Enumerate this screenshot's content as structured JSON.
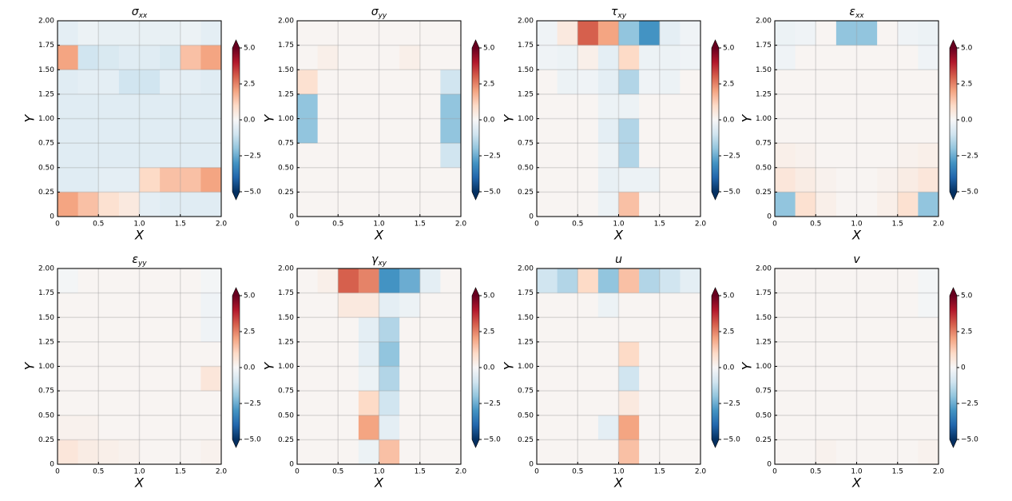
{
  "chart_data": [
    {
      "type": "heatmap",
      "title": "σxx",
      "xlabel": "X",
      "ylabel": "Y",
      "colormap": "RdBu_r",
      "grid": true,
      "xlim": [
        0,
        2
      ],
      "ylim": [
        0,
        2
      ],
      "clim": [
        -5,
        5
      ],
      "xticks": [
        0,
        0.5,
        {
          "value": 1,
          "label": "1.0"
        },
        1.5,
        {
          "value": 2,
          "label": "2.0"
        }
      ],
      "yticks": [
        0,
        0.25,
        {
          "value": 0.5,
          "label": "0.50"
        },
        0.75,
        {
          "value": 1,
          "label": "1.00"
        },
        1.25,
        {
          "value": 1.5,
          "label": "1.50"
        },
        1.75,
        {
          "value": 2,
          "label": "2.00"
        }
      ],
      "cticks": [
        {
          "value": -5,
          "label": "−5.0"
        },
        {
          "value": -2.5,
          "label": "−2.5"
        },
        {
          "value": 0,
          "label": "0.0"
        },
        2.5,
        {
          "value": 5,
          "label": "5.0"
        }
      ],
      "z": [
        [
          -0.5,
          -0.3,
          -0.4,
          -0.4,
          -0.4,
          -0.4,
          -0.3,
          -0.5
        ],
        [
          2,
          -1,
          -0.8,
          -0.6,
          -0.6,
          -0.8,
          1.5,
          2
        ],
        [
          -0.6,
          -0.5,
          -0.5,
          -1,
          -1,
          -0.5,
          -0.5,
          -0.6
        ],
        [
          -0.6,
          -0.6,
          -0.6,
          -0.6,
          -0.6,
          -0.6,
          -0.6,
          -0.6
        ],
        [
          -0.6,
          -0.6,
          -0.6,
          -0.6,
          -0.6,
          -0.6,
          -0.6,
          -0.6
        ],
        [
          -0.6,
          -0.6,
          -0.6,
          -0.6,
          -0.6,
          -0.6,
          -0.6,
          -0.6
        ],
        [
          -0.6,
          -0.6,
          -0.5,
          -0.5,
          1,
          1.5,
          1.5,
          2
        ],
        [
          2,
          1.5,
          0.8,
          0.5,
          -0.5,
          -0.6,
          -0.6,
          -0.6
        ]
      ]
    },
    {
      "type": "heatmap",
      "title": "σyy",
      "xlabel": "X",
      "ylabel": "Y",
      "colormap": "RdBu_r",
      "grid": true,
      "xlim": [
        0,
        2
      ],
      "ylim": [
        0,
        2
      ],
      "clim": [
        -5,
        5
      ],
      "xticks": [
        0,
        0.5,
        {
          "value": 1,
          "label": "1.0"
        },
        1.5,
        {
          "value": 2,
          "label": "2.0"
        }
      ],
      "yticks": [
        0,
        0.25,
        {
          "value": 0.5,
          "label": "0.50"
        },
        0.75,
        {
          "value": 1,
          "label": "1.00"
        },
        1.25,
        {
          "value": 1.5,
          "label": "1.50"
        },
        1.75,
        {
          "value": 2,
          "label": "2.00"
        }
      ],
      "cticks": [
        {
          "value": -5,
          "label": "−5.0"
        },
        {
          "value": -2.5,
          "label": "−2.5"
        },
        {
          "value": 0,
          "label": "0.0"
        },
        2.5,
        {
          "value": 5,
          "label": "5.0"
        }
      ],
      "z": [
        [
          0.1,
          0.1,
          0.1,
          0.1,
          0.1,
          0.1,
          0.1,
          0.1
        ],
        [
          0.1,
          0.3,
          0.1,
          0.1,
          0.1,
          0.3,
          0.1,
          0.1
        ],
        [
          0.8,
          0.1,
          0.1,
          0.1,
          0.1,
          0.1,
          0.1,
          -1
        ],
        [
          -2,
          0.1,
          0.1,
          0.1,
          0.1,
          0.1,
          0.1,
          -2
        ],
        [
          -2,
          0.1,
          0.1,
          0.1,
          0.1,
          0.1,
          0.1,
          -2
        ],
        [
          0.1,
          0.1,
          0.1,
          0.1,
          0.1,
          0.1,
          0.1,
          -1
        ],
        [
          0.1,
          0.1,
          0.1,
          0.1,
          0.1,
          0.1,
          0.1,
          0.1
        ],
        [
          0.1,
          0.1,
          0.1,
          0.1,
          0.1,
          0.1,
          0.1,
          0.1
        ]
      ]
    },
    {
      "type": "heatmap",
      "title": "τxy",
      "xlabel": "X",
      "ylabel": "Y",
      "colormap": "RdBu_r",
      "grid": true,
      "xlim": [
        0,
        2
      ],
      "ylim": [
        0,
        2
      ],
      "clim": [
        -5,
        5
      ],
      "xticks": [
        0,
        0.5,
        {
          "value": 1,
          "label": "1.0"
        },
        1.5,
        {
          "value": 2,
          "label": "2.0"
        }
      ],
      "yticks": [
        0,
        0.25,
        {
          "value": 0.5,
          "label": "0.50"
        },
        0.75,
        {
          "value": 1,
          "label": "1.00"
        },
        1.25,
        {
          "value": 1.5,
          "label": "1.50"
        },
        1.75,
        {
          "value": 2,
          "label": "2.00"
        }
      ],
      "cticks": [
        {
          "value": -5,
          "label": "−5.0"
        },
        {
          "value": -2.5,
          "label": "−2.5"
        },
        {
          "value": 0,
          "label": "0.0"
        },
        2.5,
        {
          "value": 5,
          "label": "5.0"
        }
      ],
      "z": [
        [
          -0.2,
          0.5,
          3,
          2,
          -2,
          -3,
          -0.5,
          -0.2
        ],
        [
          -0.2,
          -0.3,
          0.3,
          -0.5,
          1,
          -0.3,
          -0.3,
          -0.2
        ],
        [
          0.1,
          -0.3,
          -0.2,
          -0.5,
          -1.5,
          -0.2,
          -0.3,
          0.1
        ],
        [
          0.1,
          0.1,
          0.1,
          -0.3,
          -0.3,
          0.1,
          0.1,
          0.1
        ],
        [
          0.1,
          0.1,
          0.1,
          -0.5,
          -1.5,
          0.1,
          0.1,
          0.1
        ],
        [
          0.1,
          0.1,
          0.1,
          -0.3,
          -1.5,
          0.1,
          0.1,
          0.1
        ],
        [
          0.1,
          0.1,
          0.1,
          -0.4,
          -0.3,
          -0.3,
          0.1,
          0.1
        ],
        [
          0.1,
          0.1,
          0.1,
          -0.3,
          1.5,
          0.1,
          0.1,
          0.1
        ]
      ]
    },
    {
      "type": "heatmap",
      "title": "εxx",
      "xlabel": "X",
      "ylabel": "Y",
      "colormap": "RdBu_r",
      "grid": true,
      "xlim": [
        0,
        2
      ],
      "ylim": [
        0,
        2
      ],
      "clim": [
        -5,
        5
      ],
      "xticks": [
        0,
        0.5,
        {
          "value": 1,
          "label": "1.0"
        },
        1.5,
        {
          "value": 2,
          "label": "2.0"
        }
      ],
      "yticks": [
        0,
        0.25,
        {
          "value": 0.5,
          "label": "0.50"
        },
        0.75,
        {
          "value": 1,
          "label": "1.00"
        },
        1.25,
        {
          "value": 1.5,
          "label": "1.50"
        },
        1.75,
        {
          "value": 2,
          "label": "2.00"
        }
      ],
      "cticks": [
        {
          "value": -5,
          "label": "−5.0"
        },
        {
          "value": -2.5,
          "label": "−2.5"
        },
        {
          "value": 0,
          "label": "0.0"
        },
        2.5,
        {
          "value": 5,
          "label": "5.0"
        }
      ],
      "z": [
        [
          -0.3,
          -0.2,
          0.1,
          -2,
          -2,
          0.1,
          -0.2,
          -0.3
        ],
        [
          -0.2,
          0.1,
          0.1,
          0.1,
          0.1,
          0.1,
          0.1,
          -0.2
        ],
        [
          0.1,
          0.1,
          0.1,
          0.1,
          0.1,
          0.1,
          0.1,
          0.1
        ],
        [
          0.1,
          0.1,
          0.1,
          0.1,
          0.1,
          0.1,
          0.1,
          0.1
        ],
        [
          0.1,
          0.1,
          0.1,
          0.1,
          0.1,
          0.1,
          0.1,
          0.1
        ],
        [
          0.3,
          0.2,
          0.1,
          0.1,
          0.1,
          0.1,
          0.2,
          0.3
        ],
        [
          0.6,
          0.4,
          0.2,
          0.1,
          0.1,
          0.2,
          0.4,
          0.6
        ],
        [
          -2,
          0.8,
          0.3,
          0.1,
          0.1,
          0.3,
          0.8,
          -2
        ]
      ]
    },
    {
      "type": "heatmap",
      "title": "εyy",
      "xlabel": "X",
      "ylabel": "Y",
      "colormap": "RdBu_r",
      "grid": true,
      "xlim": [
        0,
        2
      ],
      "ylim": [
        0,
        2
      ],
      "clim": [
        -5,
        5
      ],
      "xticks": [
        0,
        0.5,
        {
          "value": 1,
          "label": "1.0"
        },
        1.5,
        {
          "value": 2,
          "label": "2.0"
        }
      ],
      "yticks": [
        0,
        0.25,
        {
          "value": 0.5,
          "label": "0.50"
        },
        0.75,
        {
          "value": 1,
          "label": "1.00"
        },
        1.25,
        {
          "value": 1.5,
          "label": "1.50"
        },
        1.75,
        {
          "value": 2,
          "label": "2.00"
        }
      ],
      "cticks": [
        {
          "value": -5,
          "label": "−5.0"
        },
        {
          "value": -2.5,
          "label": "−2.5"
        },
        {
          "value": 0,
          "label": "0.0"
        },
        2.5,
        {
          "value": 5,
          "label": "5.0"
        }
      ],
      "z": [
        [
          -0.1,
          0.1,
          0.1,
          0.1,
          0.1,
          0.1,
          0.1,
          -0.1
        ],
        [
          0.1,
          0.1,
          0.1,
          0.1,
          0.1,
          0.1,
          0.1,
          -0.2
        ],
        [
          0.1,
          0.1,
          0.1,
          0.1,
          0.1,
          0.1,
          0.1,
          -0.2
        ],
        [
          0.1,
          0.1,
          0.1,
          0.1,
          0.1,
          0.1,
          0.1,
          0.1
        ],
        [
          0.1,
          0.1,
          0.1,
          0.1,
          0.1,
          0.1,
          0.1,
          0.6
        ],
        [
          0.1,
          0.1,
          0.1,
          0.1,
          0.1,
          0.1,
          0.1,
          0.1
        ],
        [
          0.2,
          0.2,
          0.1,
          0.1,
          0.1,
          0.1,
          0.1,
          0.1
        ],
        [
          0.6,
          0.4,
          0.3,
          0.2,
          0.1,
          0.1,
          0.1,
          0.2
        ]
      ]
    },
    {
      "type": "heatmap",
      "title": "γxy",
      "xlabel": "X",
      "ylabel": "Y",
      "colormap": "RdBu_r",
      "grid": true,
      "xlim": [
        0,
        2
      ],
      "ylim": [
        0,
        2
      ],
      "clim": [
        -5,
        5
      ],
      "xticks": [
        0,
        0.5,
        {
          "value": 1,
          "label": "1.0"
        },
        1.5,
        {
          "value": 2,
          "label": "2.0"
        }
      ],
      "yticks": [
        0,
        0.25,
        {
          "value": 0.5,
          "label": "0.50"
        },
        0.75,
        {
          "value": 1,
          "label": "1.00"
        },
        1.25,
        {
          "value": 1.5,
          "label": "1.50"
        },
        1.75,
        {
          "value": 2,
          "label": "2.00"
        }
      ],
      "cticks": [
        {
          "value": -5,
          "label": "−5.0"
        },
        {
          "value": -2.5,
          "label": "−2.5"
        },
        {
          "value": 0,
          "label": "0.0"
        },
        2.5,
        {
          "value": 5,
          "label": "5.0"
        }
      ],
      "z": [
        [
          0.1,
          0.3,
          3,
          2.5,
          -3,
          -2.5,
          -0.5,
          0.1
        ],
        [
          0.1,
          0.1,
          0.5,
          0.5,
          -0.5,
          -0.3,
          0.1,
          0.1
        ],
        [
          0.1,
          0.1,
          0.1,
          -0.5,
          -1.5,
          0.1,
          0.1,
          0.1
        ],
        [
          0.1,
          0.1,
          0.1,
          -0.5,
          -2,
          0.1,
          0.1,
          0.1
        ],
        [
          0.1,
          0.1,
          0.1,
          -0.3,
          -1.5,
          0.1,
          0.1,
          0.1
        ],
        [
          0.1,
          0.1,
          0.1,
          1,
          -1,
          0.1,
          0.1,
          0.1
        ],
        [
          0.1,
          0.1,
          0.1,
          2,
          -0.5,
          0.1,
          0.1,
          0.1
        ],
        [
          0.1,
          0.1,
          0.1,
          -0.3,
          1.5,
          0.1,
          0.1,
          0.1
        ]
      ]
    },
    {
      "type": "heatmap",
      "title": "u",
      "xlabel": "X",
      "ylabel": "Y",
      "colormap": "RdBu_r",
      "grid": true,
      "xlim": [
        0,
        2
      ],
      "ylim": [
        0,
        2
      ],
      "clim": [
        -5,
        5
      ],
      "xticks": [
        0,
        0.5,
        {
          "value": 1,
          "label": "1.0"
        },
        1.5,
        {
          "value": 2,
          "label": "2.0"
        }
      ],
      "yticks": [
        0,
        0.25,
        {
          "value": 0.5,
          "label": "0.50"
        },
        0.75,
        {
          "value": 1,
          "label": "1.00"
        },
        1.25,
        {
          "value": 1.5,
          "label": "1.50"
        },
        1.75,
        {
          "value": 2,
          "label": "2.00"
        }
      ],
      "cticks": [
        {
          "value": -5,
          "label": "−5.0"
        },
        {
          "value": -2.5,
          "label": "−2.5"
        },
        {
          "value": 0,
          "label": "0.0"
        },
        2.5,
        {
          "value": 5,
          "label": "5.0"
        }
      ],
      "z": [
        [
          -1,
          -1.5,
          1,
          -2,
          1.5,
          -1.5,
          -1,
          -0.5
        ],
        [
          0.1,
          0.1,
          0.1,
          -0.3,
          0.1,
          0.1,
          0.1,
          0.1
        ],
        [
          0.1,
          0.1,
          0.1,
          0.1,
          0.1,
          0.1,
          0.1,
          0.1
        ],
        [
          0.1,
          0.1,
          0.1,
          0.1,
          1,
          0.1,
          0.1,
          0.1
        ],
        [
          0.1,
          0.1,
          0.1,
          0.1,
          -1,
          0.1,
          0.1,
          0.1
        ],
        [
          0.1,
          0.1,
          0.1,
          0.1,
          0.5,
          0.1,
          0.1,
          0.1
        ],
        [
          0.1,
          0.1,
          0.1,
          -0.5,
          2,
          0.1,
          0.1,
          0.1
        ],
        [
          0.1,
          0.1,
          0.1,
          0.1,
          1.5,
          0.1,
          0.1,
          0.1
        ]
      ]
    },
    {
      "type": "heatmap",
      "title": "v",
      "xlabel": "X",
      "ylabel": "Y",
      "colormap": "RdBu_r",
      "grid": true,
      "xlim": [
        0,
        2
      ],
      "ylim": [
        0,
        2
      ],
      "clim": [
        -5,
        5
      ],
      "xticks": [
        0,
        0.5,
        {
          "value": 1,
          "label": "1.0"
        },
        1.5,
        {
          "value": 2,
          "label": "2.0"
        }
      ],
      "yticks": [
        0,
        0.25,
        {
          "value": 0.5,
          "label": "0.50"
        },
        0.75,
        {
          "value": 1,
          "label": "1.00"
        },
        1.25,
        {
          "value": 1.5,
          "label": "1.50"
        },
        1.75,
        {
          "value": 2,
          "label": "2.00"
        }
      ],
      "cticks": [
        {
          "value": -5,
          "label": "−5.0"
        },
        {
          "value": -2.5,
          "label": "−2.5"
        },
        0,
        2.5,
        {
          "value": 5,
          "label": "5.0"
        }
      ],
      "z": [
        [
          0.1,
          0.1,
          0.1,
          0.1,
          0.1,
          0.1,
          0.1,
          -0.1
        ],
        [
          0.1,
          0.1,
          0.1,
          0.1,
          0.1,
          0.1,
          0.1,
          -0.1
        ],
        [
          0.1,
          0.1,
          0.1,
          0.1,
          0.1,
          0.1,
          0.1,
          0.1
        ],
        [
          0.1,
          0.1,
          0.1,
          0.1,
          0.1,
          0.1,
          0.1,
          0.1
        ],
        [
          0.1,
          0.1,
          0.1,
          0.1,
          0.1,
          0.1,
          0.1,
          0.1
        ],
        [
          0.1,
          0.1,
          0.1,
          0.1,
          0.1,
          0.1,
          0.1,
          0.1
        ],
        [
          0.1,
          0.1,
          0.1,
          0.1,
          0.1,
          0.1,
          0.1,
          0.1
        ],
        [
          0.1,
          0.1,
          0.2,
          0.1,
          0.1,
          0.1,
          0.1,
          0.2
        ]
      ]
    }
  ]
}
